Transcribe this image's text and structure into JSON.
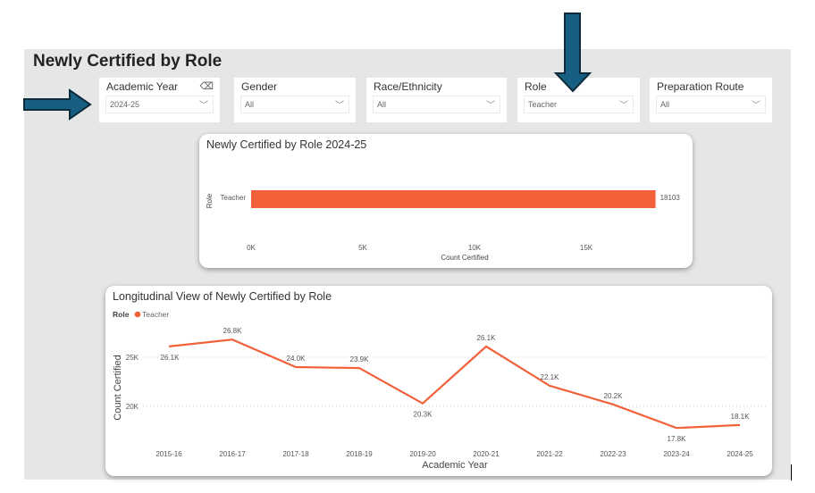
{
  "page_title": "Newly Certified by Role",
  "slicers": [
    {
      "label": "Academic Year",
      "value": "2024-25",
      "has_eraser": true
    },
    {
      "label": "Gender",
      "value": "All"
    },
    {
      "label": "Race/Ethnicity",
      "value": "All"
    },
    {
      "label": "Role",
      "value": "Teacher"
    },
    {
      "label": "Preparation Route",
      "value": "All"
    }
  ],
  "colors": {
    "series": "#f2613a",
    "arrow": "#175f82"
  },
  "chart_data": [
    {
      "type": "bar",
      "title": "Newly Certified by Role 2024-25",
      "categories": [
        "Teacher"
      ],
      "values": [
        18103
      ],
      "data_labels": [
        "18103"
      ],
      "xlabel": "Count Certified",
      "ylabel": "Role",
      "xlim": [
        0,
        18500
      ],
      "xticks": [
        0,
        5000,
        10000,
        15000
      ],
      "xtick_labels": [
        "0K",
        "5K",
        "10K",
        "15K"
      ],
      "orientation": "horizontal"
    },
    {
      "type": "line",
      "title": "Longitudinal View of Newly Certified by Role",
      "legend_title": "Role",
      "legend": [
        "Teacher"
      ],
      "legend_placement": "top-left",
      "categories": [
        "2015-16",
        "2016-17",
        "2017-18",
        "2018-19",
        "2019-20",
        "2020-21",
        "2021-22",
        "2022-23",
        "2023-24",
        "2024-25"
      ],
      "series": [
        {
          "name": "Teacher",
          "values": [
            26.1,
            26.8,
            24.0,
            23.9,
            20.3,
            26.1,
            22.1,
            20.2,
            17.8,
            18.1
          ],
          "data_labels": [
            "26.1K",
            "26.8K",
            "24.0K",
            "23.9K",
            "20.3K",
            "26.1K",
            "22.1K",
            "20.2K",
            "17.8K",
            "18.1K"
          ]
        }
      ],
      "xlabel": "Academic Year",
      "ylabel": "Count Certified",
      "yticks": [
        20,
        25
      ],
      "ytick_labels": [
        "20K",
        "25K"
      ],
      "grid": true
    }
  ]
}
